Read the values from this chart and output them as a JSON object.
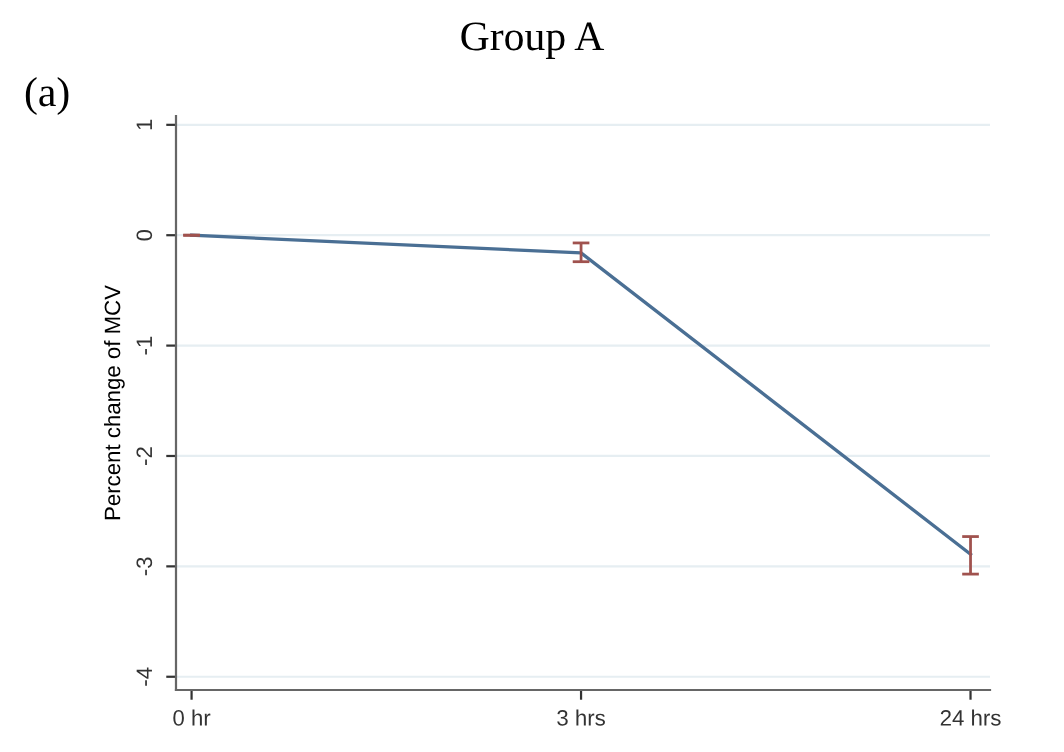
{
  "chart_data": {
    "type": "line",
    "title": "Group A",
    "ylabel": "Percent change of MCV",
    "annotations": [
      "(a)"
    ],
    "categories": [
      "0 hr",
      "3 hrs",
      "24 hrs"
    ],
    "series": [
      {
        "color": "#4a6f94",
        "values": [
          0,
          -0.16,
          -2.89
        ],
        "errors": [
          0,
          [
            -0.24,
            -0.07
          ],
          [
            -3.07,
            -2.73
          ]
        ]
      }
    ],
    "ylim": [
      -4.12,
      1.08
    ],
    "yticks": [
      1,
      0,
      -1,
      -2,
      -3,
      -4
    ],
    "grid": "y",
    "marker": "none",
    "line_style": "solid"
  }
}
